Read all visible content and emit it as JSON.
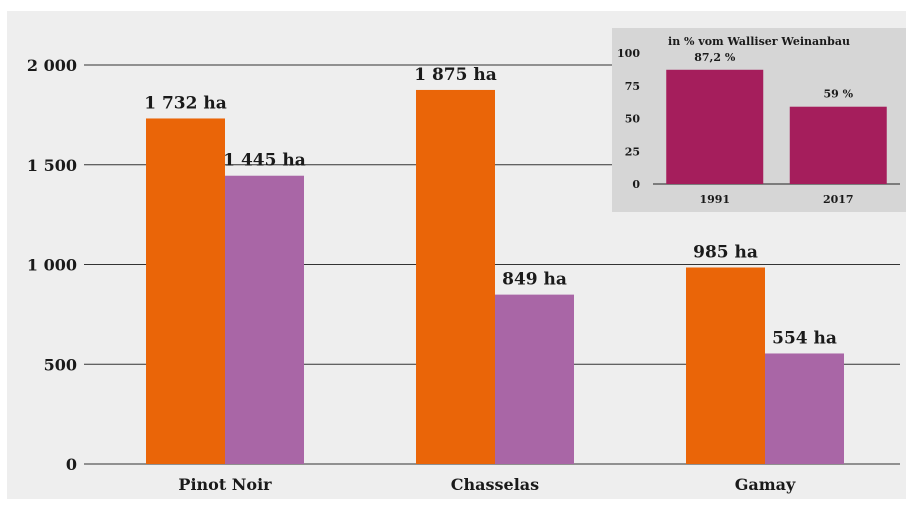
{
  "chart_data": [
    {
      "type": "bar",
      "title": "",
      "xlabel": "",
      "ylabel": "",
      "categories": [
        "Pinot Noir",
        "Chasselas",
        "Gamay"
      ],
      "series": [
        {
          "values": [
            1732,
            1875,
            985
          ],
          "labels": [
            "1 732 ha",
            "1 875 ha",
            "985 ha"
          ],
          "color": "#ea6508"
        },
        {
          "values": [
            1445,
            849,
            554
          ],
          "labels": [
            "1 445 ha",
            "849 ha",
            "554 ha"
          ],
          "color": "#a966a6"
        }
      ],
      "ylim": [
        0,
        2000
      ],
      "yticks": [
        0,
        500,
        1000,
        1500,
        2000
      ],
      "yticklabels": [
        "0",
        "500",
        "1 000",
        "1 500",
        "2 000"
      ],
      "grid": true
    },
    {
      "type": "bar",
      "title": "in % vom Walliser Weinanbau",
      "xlabel": "",
      "ylabel": "",
      "categories": [
        "1991",
        "2017"
      ],
      "values": [
        87.2,
        59
      ],
      "labels": [
        "87,2 %",
        "59 %"
      ],
      "color": "#a51e5c",
      "ylim": [
        0,
        100
      ],
      "yticks": [
        0,
        25,
        50,
        75,
        100
      ],
      "yticklabels": [
        "0",
        "25",
        "50",
        "75",
        "100"
      ],
      "grid": false,
      "background": "#d6d6d6"
    }
  ]
}
